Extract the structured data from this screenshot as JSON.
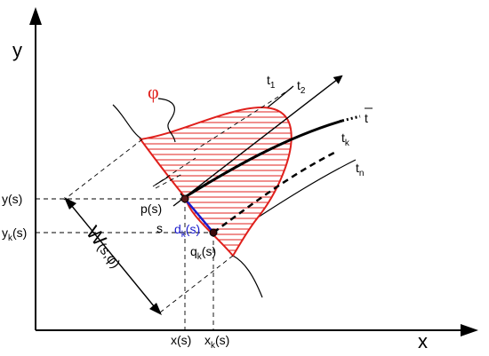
{
  "axes": {
    "x_label": "x",
    "y_label": "y"
  },
  "region": {
    "label": "φ"
  },
  "curves": {
    "t1": "t",
    "t1_sub": "1",
    "t2": "t",
    "t2_sub": "2",
    "tbar": "t",
    "tk": "t",
    "tk_sub": "k",
    "tn": "t",
    "tn_sub": "n"
  },
  "points": {
    "p": "p(s)",
    "q_main": "q",
    "q_sub": "k",
    "q_tail": "(s)",
    "d_main": "d",
    "d_sub": "k",
    "d_tail": "(s)",
    "s_label": "s"
  },
  "ticks": {
    "y_s": "y(s)",
    "yk_main": "y",
    "yk_sub": "k",
    "yk_tail": "(s)",
    "x_s": "x(s)",
    "xk_main": "x",
    "xk_sub": "k",
    "xk_tail": "(s)"
  },
  "width": {
    "W": "W",
    "args": "(s,φ)"
  },
  "colors": {
    "region_red": "#e0201c",
    "distance_blue": "#1a1acc",
    "ink": "#000000"
  }
}
